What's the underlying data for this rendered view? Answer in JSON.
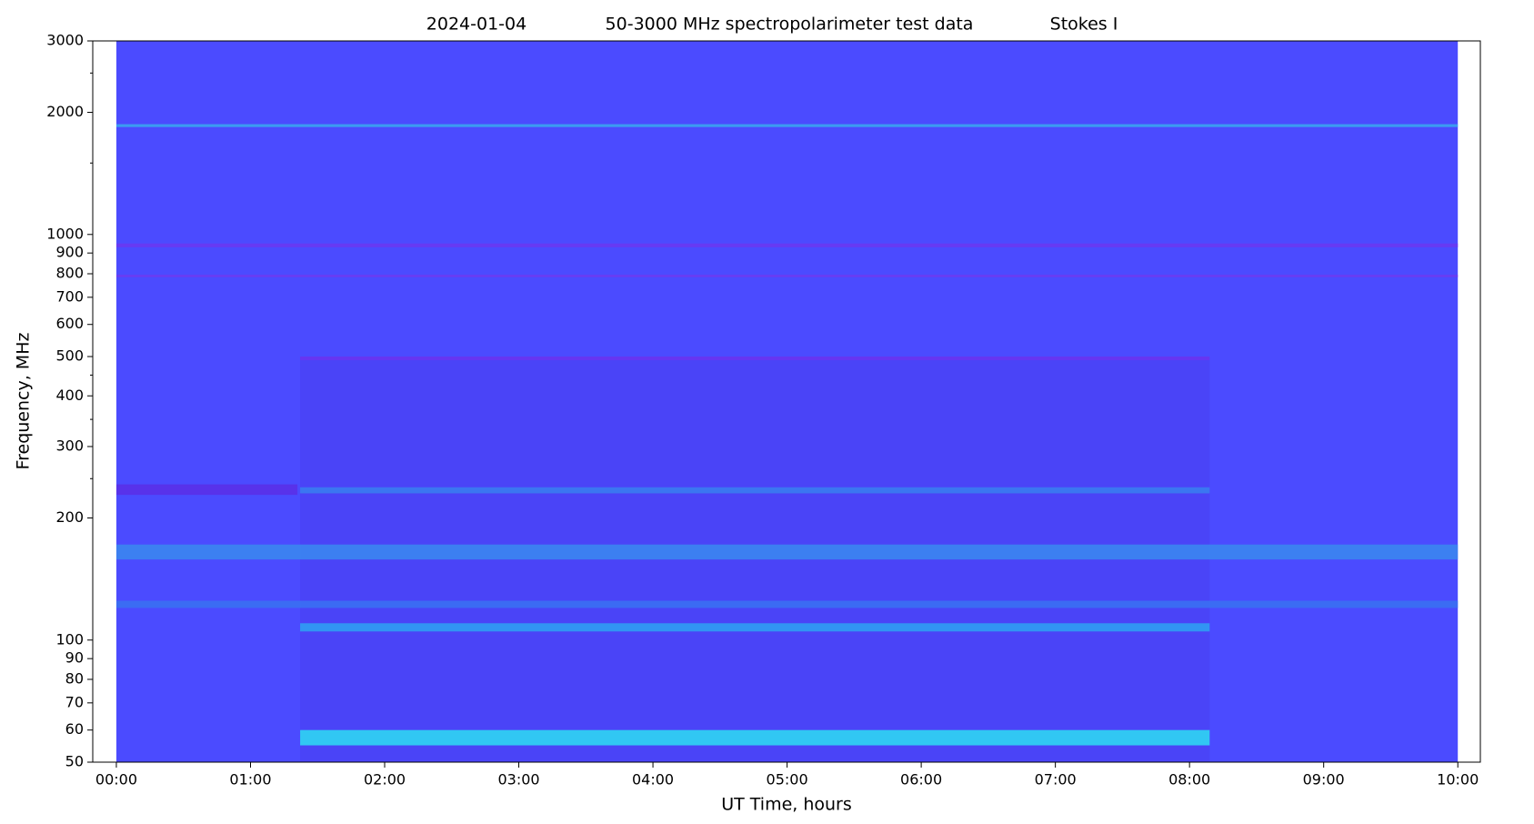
{
  "chart_data": {
    "type": "spectrogram",
    "title": [
      "2024-01-04",
      "50-3000 MHz spectropolarimeter test data",
      "Stokes I"
    ],
    "xlabel": "UT Time, hours",
    "ylabel": "Frequency, MHz",
    "log_y": true,
    "xlim": [
      -0.176,
      10.168
    ],
    "ylim": [
      50,
      3000
    ],
    "xticks": [
      {
        "value": 0,
        "label": "00:00"
      },
      {
        "value": 1,
        "label": "01:00"
      },
      {
        "value": 2,
        "label": "02:00"
      },
      {
        "value": 3,
        "label": "03:00"
      },
      {
        "value": 4,
        "label": "04:00"
      },
      {
        "value": 5,
        "label": "05:00"
      },
      {
        "value": 6,
        "label": "06:00"
      },
      {
        "value": 7,
        "label": "07:00"
      },
      {
        "value": 8,
        "label": "08:00"
      },
      {
        "value": 9,
        "label": "09:00"
      },
      {
        "value": 10,
        "label": "10:00"
      }
    ],
    "yticks": [
      50,
      60,
      70,
      80,
      90,
      100,
      200,
      300,
      400,
      500,
      600,
      700,
      800,
      900,
      1000,
      2000,
      3000
    ],
    "yminorticks": [
      250,
      350,
      450,
      1500,
      2500
    ],
    "image": {
      "x": [
        0,
        10
      ],
      "color": "#4b4bff"
    },
    "bands": [
      {
        "x": [
          1.37,
          8.15
        ],
        "y": [
          50,
          500
        ],
        "color": "#4a44f6"
      },
      {
        "x": [
          1.37,
          8.15
        ],
        "y": [
          55,
          60
        ],
        "color": "#2fd6f2"
      },
      {
        "x": [
          1.37,
          8.15
        ],
        "y": [
          105,
          110
        ],
        "color": "#2f9ef2"
      },
      {
        "x": [
          0,
          10
        ],
        "y": [
          120,
          125
        ],
        "color": "#3a70f2"
      },
      {
        "x": [
          0,
          10
        ],
        "y": [
          158,
          172
        ],
        "color": "#3b86f0"
      },
      {
        "x": [
          0,
          1.35
        ],
        "y": [
          228,
          242
        ],
        "color": "#5a30e8"
      },
      {
        "x": [
          1.37,
          8.15
        ],
        "y": [
          230,
          238
        ],
        "color": "#3a7cf0"
      },
      {
        "x": [
          1.37,
          8.15
        ],
        "y": [
          490,
          500
        ],
        "color": "#6a34f0"
      },
      {
        "x": [
          0,
          10
        ],
        "y": [
          785,
          795
        ],
        "color": "#6f3af0"
      },
      {
        "x": [
          0,
          10
        ],
        "y": [
          930,
          950
        ],
        "color": "#6a38f2"
      },
      {
        "x": [
          0,
          10
        ],
        "y": [
          1840,
          1870
        ],
        "color": "#3aa4f0"
      }
    ]
  }
}
